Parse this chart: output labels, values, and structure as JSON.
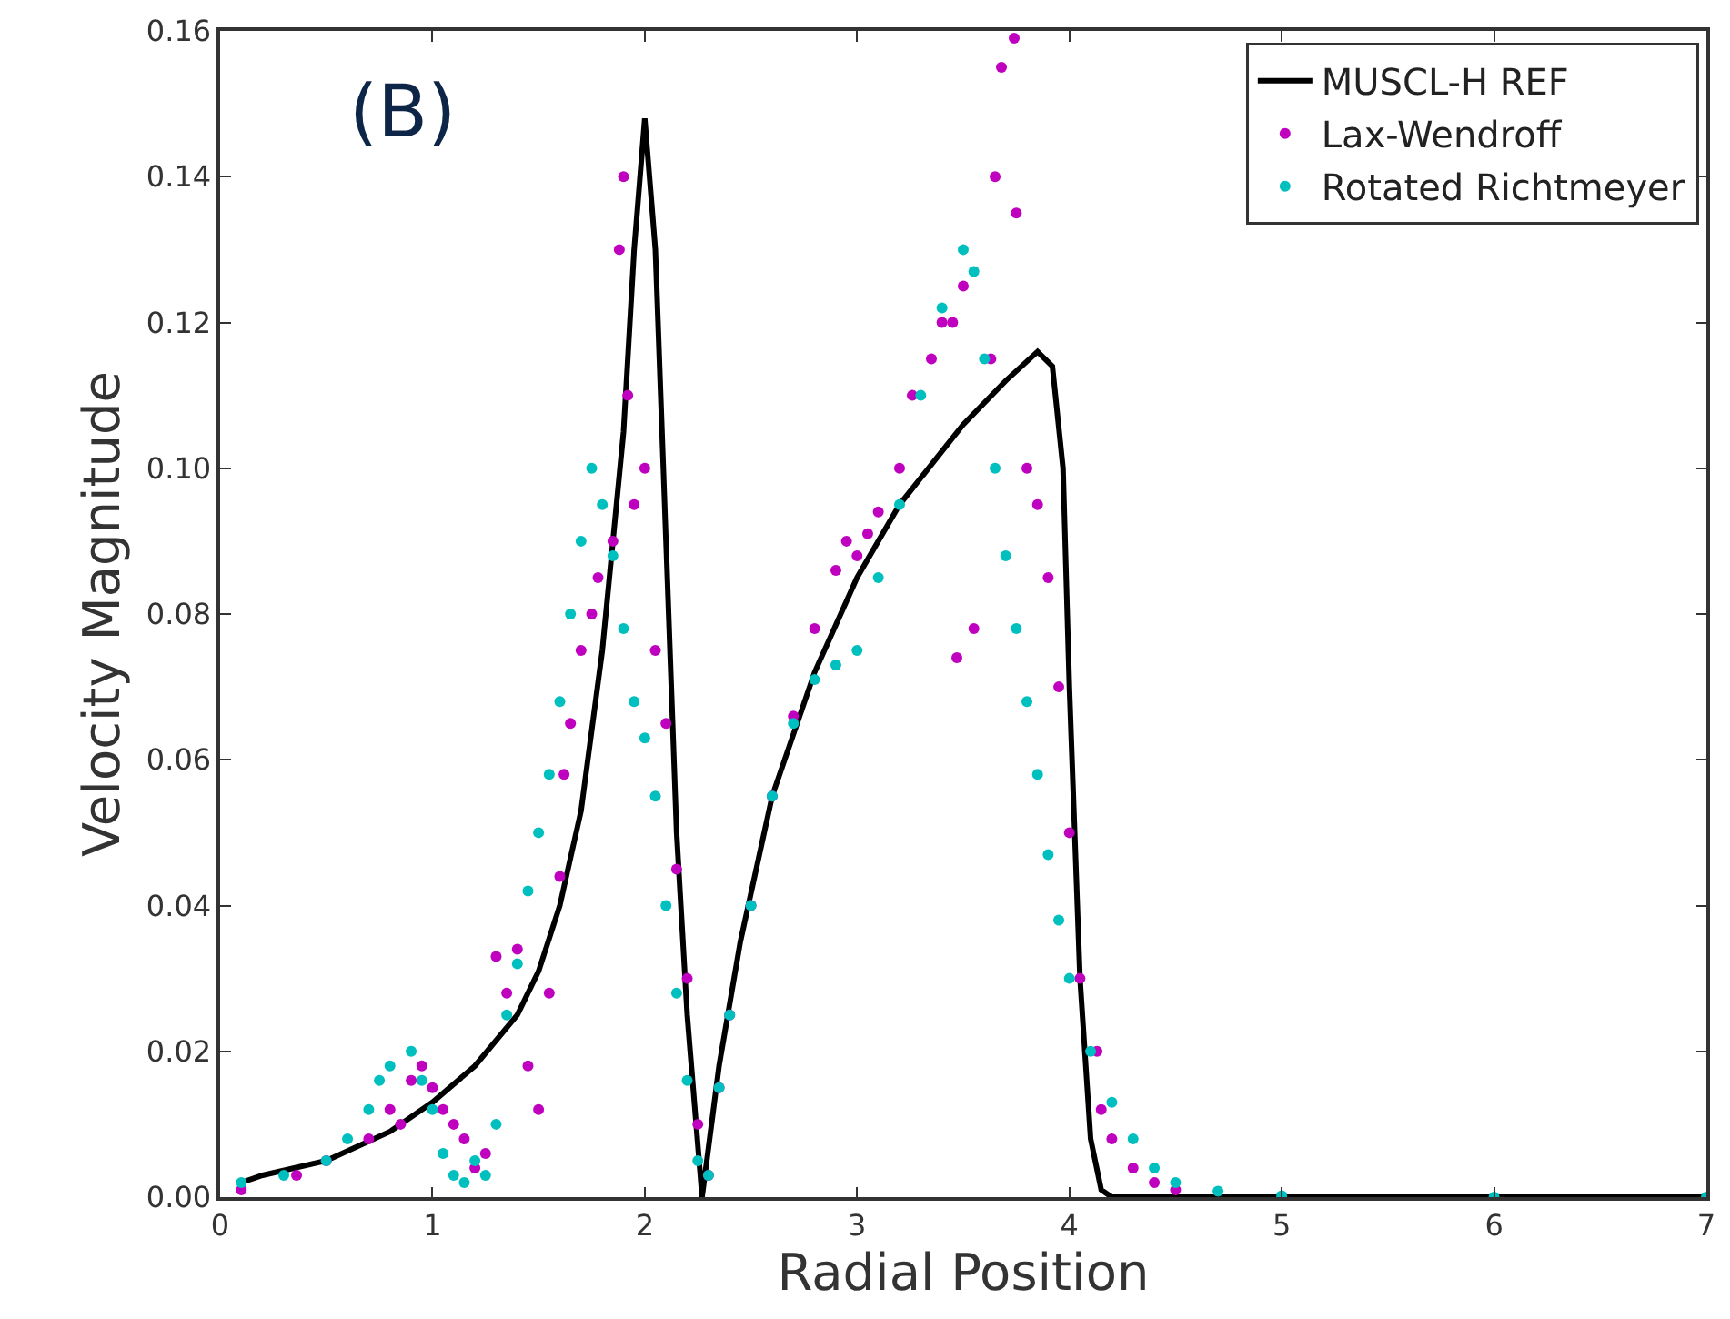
{
  "chart_data": {
    "type": "line",
    "xlabel": "Radial Position",
    "ylabel": "Velocity Magnitude",
    "annotations": [
      "(B)"
    ],
    "xlim": [
      0,
      7
    ],
    "xticks": [
      0,
      1,
      2,
      3,
      4,
      5,
      6,
      7
    ],
    "ylim": [
      0,
      0.16
    ],
    "yticks": [
      {
        "value": 0,
        "label": "0.00"
      },
      0.02,
      0.04,
      0.06,
      0.08,
      {
        "value": 0.1,
        "label": "0.10"
      },
      0.12,
      0.14,
      0.16
    ],
    "legend": "top right",
    "series": [
      {
        "name": "MUSCL-H REF",
        "color": "#000000",
        "marker": "none",
        "line_style": "solid",
        "x": [
          0.1,
          0.2,
          0.5,
          0.8,
          1.0,
          1.2,
          1.4,
          1.5,
          1.6,
          1.7,
          1.8,
          1.9,
          1.95,
          2.0,
          2.05,
          2.1,
          2.15,
          2.2,
          2.27,
          2.35,
          2.45,
          2.6,
          2.8,
          3.0,
          3.2,
          3.5,
          3.7,
          3.85,
          3.92,
          3.97,
          4.0,
          4.05,
          4.1,
          4.15,
          4.2,
          7.0
        ],
        "values": [
          0.002,
          0.003,
          0.005,
          0.009,
          0.013,
          0.018,
          0.025,
          0.031,
          0.04,
          0.053,
          0.075,
          0.105,
          0.13,
          0.148,
          0.13,
          0.09,
          0.05,
          0.025,
          0.0,
          0.018,
          0.035,
          0.055,
          0.072,
          0.085,
          0.095,
          0.106,
          0.112,
          0.116,
          0.114,
          0.1,
          0.07,
          0.03,
          0.008,
          0.001,
          0.0,
          0.0
        ]
      },
      {
        "name": "Lax-Wendroff",
        "color": "#bf00bf",
        "type": "scatter",
        "marker": "circle",
        "x": [
          0.1,
          0.36,
          0.5,
          0.7,
          0.8,
          0.85,
          0.9,
          0.95,
          1.0,
          1.05,
          1.1,
          1.15,
          1.2,
          1.25,
          1.3,
          1.35,
          1.4,
          1.45,
          1.5,
          1.55,
          1.6,
          1.62,
          1.65,
          1.7,
          1.75,
          1.78,
          1.85,
          1.88,
          1.9,
          1.92,
          1.95,
          2.0,
          2.05,
          2.1,
          2.15,
          2.2,
          2.25,
          2.3,
          2.35,
          2.4,
          2.5,
          2.6,
          2.7,
          2.8,
          2.9,
          2.95,
          3.0,
          3.05,
          3.1,
          3.2,
          3.26,
          3.35,
          3.4,
          3.45,
          3.5,
          3.47,
          3.55,
          3.63,
          3.65,
          3.68,
          3.74,
          3.75,
          3.8,
          3.85,
          3.9,
          3.95,
          4.0,
          4.05,
          4.13,
          4.15,
          4.2,
          4.3,
          4.4,
          4.5
        ],
        "values": [
          0.001,
          0.003,
          0.005,
          0.008,
          0.012,
          0.01,
          0.016,
          0.018,
          0.015,
          0.012,
          0.01,
          0.008,
          0.004,
          0.006,
          0.033,
          0.028,
          0.034,
          0.018,
          0.012,
          0.028,
          0.044,
          0.058,
          0.065,
          0.075,
          0.08,
          0.085,
          0.09,
          0.13,
          0.14,
          0.11,
          0.095,
          0.1,
          0.075,
          0.065,
          0.045,
          0.03,
          0.01,
          0.003,
          0.015,
          0.025,
          0.04,
          0.055,
          0.066,
          0.078,
          0.086,
          0.09,
          0.088,
          0.091,
          0.094,
          0.1,
          0.11,
          0.115,
          0.12,
          0.12,
          0.125,
          0.074,
          0.078,
          0.115,
          0.14,
          0.155,
          0.159,
          0.135,
          0.1,
          0.095,
          0.085,
          0.07,
          0.05,
          0.03,
          0.02,
          0.012,
          0.008,
          0.004,
          0.002,
          0.001
        ]
      },
      {
        "name": "Rotated Richtmeyer",
        "color": "#00bfbf",
        "type": "scatter",
        "marker": "circle",
        "x": [
          0.1,
          0.3,
          0.5,
          0.6,
          0.7,
          0.75,
          0.8,
          0.9,
          0.95,
          1.0,
          1.05,
          1.1,
          1.15,
          1.2,
          1.25,
          1.3,
          1.35,
          1.4,
          1.45,
          1.5,
          1.55,
          1.6,
          1.65,
          1.7,
          1.75,
          1.8,
          1.85,
          1.9,
          1.95,
          2.0,
          2.05,
          2.1,
          2.15,
          2.2,
          2.25,
          2.3,
          2.35,
          2.4,
          2.5,
          2.6,
          2.7,
          2.8,
          2.9,
          3.0,
          3.1,
          3.2,
          3.3,
          3.4,
          3.5,
          3.55,
          3.6,
          3.65,
          3.7,
          3.75,
          3.8,
          3.85,
          3.9,
          3.95,
          4.0,
          4.1,
          4.2,
          4.3,
          4.4,
          4.5,
          4.7,
          5.0,
          6.0,
          7.0
        ],
        "values": [
          0.002,
          0.003,
          0.005,
          0.008,
          0.012,
          0.016,
          0.018,
          0.02,
          0.016,
          0.012,
          0.006,
          0.003,
          0.002,
          0.005,
          0.003,
          0.01,
          0.025,
          0.032,
          0.042,
          0.05,
          0.058,
          0.068,
          0.08,
          0.09,
          0.1,
          0.095,
          0.088,
          0.078,
          0.068,
          0.063,
          0.055,
          0.04,
          0.028,
          0.016,
          0.005,
          0.003,
          0.015,
          0.025,
          0.04,
          0.055,
          0.065,
          0.071,
          0.073,
          0.075,
          0.085,
          0.095,
          0.11,
          0.122,
          0.13,
          0.127,
          0.115,
          0.1,
          0.088,
          0.078,
          0.068,
          0.058,
          0.047,
          0.038,
          0.03,
          0.02,
          0.013,
          0.008,
          0.004,
          0.002,
          0.0008,
          0.0002,
          0.0,
          0.0
        ]
      }
    ]
  }
}
